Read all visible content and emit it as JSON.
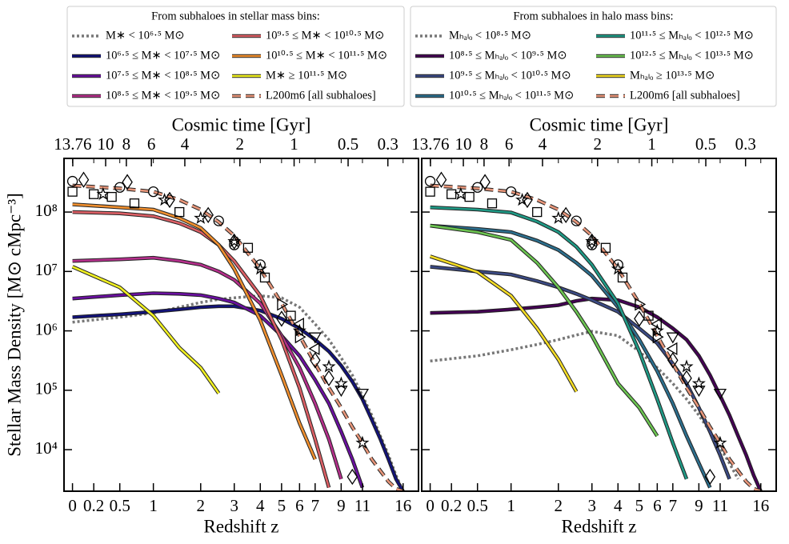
{
  "chart_data": [
    {
      "type": "line",
      "xscale": "log1p",
      "yscale": "log",
      "legend_title": "From subhaloes in stellar mass bins:",
      "xlabel": "Redshift z",
      "x2label": "Cosmic time [Gyr]",
      "ylabel": "Stellar Mass Density [M⊙ cMpc⁻³]",
      "xlim": [
        -0.07,
        18.4
      ],
      "xticks": [
        0,
        0.2,
        0.5,
        1,
        2,
        3,
        4,
        5,
        6,
        7,
        9,
        11,
        16
      ],
      "x2ticks": [
        13.76,
        10,
        8,
        6,
        4,
        2,
        1,
        0.5,
        0.3
      ],
      "ylim": [
        2000,
        800000000.0
      ],
      "yticks": [
        {
          "value": 10000.0,
          "label": "10⁴"
        },
        {
          "value": 100000.0,
          "label": "10⁵"
        },
        {
          "value": 1000000.0,
          "label": "10⁶"
        },
        {
          "value": 10000000.0,
          "label": "10⁷"
        },
        {
          "value": 100000000.0,
          "label": "10⁸"
        }
      ],
      "ytick_labels": true,
      "x": [
        0,
        0.5,
        1,
        1.5,
        2,
        2.5,
        3,
        4,
        5,
        6,
        7,
        8,
        9,
        10,
        11,
        12,
        13,
        14,
        15,
        16
      ],
      "series": [
        {
          "name": "M∗ < 10⁶·⁵ M⊙",
          "color": "#777777",
          "style": "dotted",
          "values": [
            1400000.0,
            1700000.0,
            2000000.0,
            2500000.0,
            3000000.0,
            3400000.0,
            3600000.0,
            3900000.0,
            3600000.0,
            2500000.0,
            1300000.0,
            710000.0,
            350000.0,
            180000.0,
            81000.0,
            38000.0,
            17000.0,
            8100.0,
            3700.0,
            2000.0
          ]
        },
        {
          "name": "10⁶·⁵ ≤ M∗ < 10⁷·⁵ M⊙",
          "color": "#12127a",
          "style": "solid",
          "values": [
            1700000.0,
            1900000.0,
            2100000.0,
            2300000.0,
            2500000.0,
            2600000.0,
            2600000.0,
            2200000.0,
            1600000.0,
            1100000.0,
            710000.0,
            450000.0,
            260000.0,
            140000.0,
            71000.0,
            32000.0,
            15000.0,
            6900.0,
            3200.0,
            2000.0
          ]
        },
        {
          "name": "10⁷·⁵ ≤ M∗ < 10⁸·⁵ M⊙",
          "color": "#6a0fa0",
          "style": "solid",
          "values": [
            3500000.0,
            4000000.0,
            4300000.0,
            4200000.0,
            4000000.0,
            3500000.0,
            3000000.0,
            1800000.0,
            830000.0,
            380000.0,
            150000.0,
            60000.0,
            20000.0,
            6900.0,
            2300.0,
            null,
            null,
            null,
            null,
            null
          ]
        },
        {
          "name": "10⁸·⁵ ≤ M∗ < 10⁹·⁵ M⊙",
          "color": "#b52f8c",
          "style": "solid",
          "values": [
            15000000.0,
            16000000.0,
            17000000.0,
            15000000.0,
            13000000.0,
            10000000.0,
            7200000.0,
            2900000.0,
            830000.0,
            240000.0,
            60000.0,
            15000.0,
            3200.0,
            null,
            null,
            null,
            null,
            null,
            null,
            null
          ]
        },
        {
          "name": "10⁹·⁵ ≤ M∗ < 10¹⁰·⁵ M⊙",
          "color": "#dc5f65",
          "style": "solid",
          "values": [
            100000000.0,
            95000000.0,
            85000000.0,
            65000000.0,
            46000000.0,
            28000000.0,
            15000000.0,
            3900000.0,
            710000.0,
            110000.0,
            15000.0,
            2300.0,
            null,
            null,
            null,
            null,
            null,
            null,
            null,
            null
          ]
        },
        {
          "name": "10¹⁰·⁵ ≤ M∗ < 10¹¹·⁵ M⊙",
          "color": "#f08f2e",
          "style": "solid",
          "values": [
            135000000.0,
            120000000.0,
            110000000.0,
            79000000.0,
            54000000.0,
            28000000.0,
            11000000.0,
            1500000.0,
            180000.0,
            28000.0,
            6900.0,
            null,
            null,
            null,
            null,
            null,
            null,
            null,
            null,
            null
          ]
        },
        {
          "name": "M∗ ≥ 10¹¹·⁵ M⊙",
          "color": "#f0f021",
          "style": "solid",
          "values": [
            12000000.0,
            5400000.0,
            1800000.0,
            520000.0,
            240000.0,
            89000.0,
            null,
            null,
            null,
            null,
            null,
            null,
            null,
            null,
            null,
            null,
            null,
            null,
            null,
            null
          ]
        },
        {
          "name": "L200m6 [all subhaloes]",
          "color": "#e8967a",
          "style": "dashed",
          "values": [
            280000000.0,
            250000000.0,
            220000000.0,
            160000000.0,
            110000000.0,
            68000000.0,
            40000000.0,
            11000000.0,
            2900000.0,
            830000.0,
            280000.0,
            110000.0,
            51000.0,
            24000.0,
            13000.0,
            6900.0,
            4400.0,
            2900.0,
            2200.0,
            2000.0
          ]
        }
      ]
    },
    {
      "type": "line",
      "xscale": "log1p",
      "yscale": "log",
      "legend_title": "From subhaloes in halo mass bins:",
      "xlabel": "Redshift z",
      "x2label": "Cosmic time [Gyr]",
      "xlim": [
        -0.07,
        18.4
      ],
      "xticks": [
        0,
        0.2,
        0.5,
        1,
        2,
        3,
        4,
        5,
        6,
        7,
        9,
        11,
        16
      ],
      "x2ticks": [
        13.76,
        10,
        8,
        6,
        4,
        2,
        1,
        0.5,
        0.3
      ],
      "ylim": [
        2000,
        800000000.0
      ],
      "yticks": [
        {
          "value": 10000.0,
          "label": "10⁴"
        },
        {
          "value": 100000.0,
          "label": "10⁵"
        },
        {
          "value": 1000000.0,
          "label": "10⁶"
        },
        {
          "value": 10000000.0,
          "label": "10⁷"
        },
        {
          "value": 100000000.0,
          "label": "10⁸"
        }
      ],
      "ytick_labels": false,
      "x": [
        0,
        0.5,
        1,
        1.5,
        2,
        2.5,
        3,
        4,
        5,
        6,
        7,
        8,
        9,
        10,
        11,
        12,
        13,
        14,
        15,
        16
      ],
      "series": [
        {
          "name": "Mₕₐₗₒ < 10⁸·⁵ M⊙",
          "color": "#777777",
          "style": "dotted",
          "values": [
            310000.0,
            380000.0,
            480000.0,
            590000.0,
            710000.0,
            850000.0,
            980000.0,
            830000.0,
            450000.0,
            240000.0,
            130000.0,
            71000.0,
            38000.0,
            20000.0,
            11000.0,
            5900.0,
            3200.0,
            null,
            null,
            null
          ]
        },
        {
          "name": "10⁸·⁵ ≤ Mₕₐₗₒ < 10⁹·⁵ M⊙",
          "color": "#440154",
          "style": "solid",
          "values": [
            2000000.0,
            2100000.0,
            2300000.0,
            2500000.0,
            2700000.0,
            3200000.0,
            3500000.0,
            3300000.0,
            2500000.0,
            1700000.0,
            1100000.0,
            710000.0,
            380000.0,
            180000.0,
            81000.0,
            38000.0,
            17000.0,
            8100.0,
            3700.0,
            2000.0
          ]
        },
        {
          "name": "10⁹·⁵ ≤ Mₕₐₗₒ < 10¹⁰·⁵ M⊙",
          "color": "#3b4a84",
          "style": "solid",
          "values": [
            12000000.0,
            10000000.0,
            8900000.0,
            6900000.0,
            5400000.0,
            4200000.0,
            3300000.0,
            2100000.0,
            1100000.0,
            620000.0,
            280000.0,
            130000.0,
            51000.0,
            20000.0,
            8100.0,
            3200.0,
            null,
            null,
            null,
            null
          ]
        },
        {
          "name": "10¹⁰·⁵ ≤ Mₕₐₗₒ < 10¹¹·⁵ M⊙",
          "color": "#2c6f8e",
          "style": "solid",
          "values": [
            59000000.0,
            52000000.0,
            46000000.0,
            33000000.0,
            23000000.0,
            14000000.0,
            8500000.0,
            2500000.0,
            710000.0,
            210000.0,
            60000.0,
            17000.0,
            5900.0,
            2300.0,
            null,
            null,
            null,
            null,
            null,
            null
          ]
        },
        {
          "name": "10¹¹·⁵ ≤ Mₕₐₗₒ < 10¹²·⁵ M⊙",
          "color": "#1f9a86",
          "style": "solid",
          "values": [
            120000000.0,
            110000000.0,
            98000000.0,
            69000000.0,
            46000000.0,
            26000000.0,
            13000000.0,
            2900000.0,
            450000.0,
            71000.0,
            13000.0,
            3200.0,
            null,
            null,
            null,
            null,
            null,
            null,
            null,
            null
          ]
        },
        {
          "name": "10¹²·⁵ ≤ Mₕₐₗₒ < 10¹³·⁵ M⊙",
          "color": "#6cc551",
          "style": "solid",
          "values": [
            59000000.0,
            46000000.0,
            34000000.0,
            14000000.0,
            5400000.0,
            2100000.0,
            830000.0,
            130000.0,
            51000.0,
            17000.0,
            null,
            null,
            null,
            null,
            null,
            null,
            null,
            null,
            null,
            null
          ]
        },
        {
          "name": "Mₕₐₗₒ ≥ 10¹³·⁵ M⊙",
          "color": "#f4dc24",
          "style": "solid",
          "values": [
            18000000.0,
            9800000.0,
            3900000.0,
            1100000.0,
            330000.0,
            95000.0,
            null,
            null,
            null,
            null,
            null,
            null,
            null,
            null,
            null,
            null,
            null,
            null,
            null,
            null
          ]
        },
        {
          "name": "L200m6 [all subhaloes]",
          "color": "#e8967a",
          "style": "dashed",
          "values": [
            280000000.0,
            250000000.0,
            220000000.0,
            160000000.0,
            110000000.0,
            68000000.0,
            40000000.0,
            11000000.0,
            2900000.0,
            830000.0,
            280000.0,
            110000.0,
            51000.0,
            24000.0,
            13000.0,
            6900.0,
            4400.0,
            2900.0,
            2200.0,
            2000.0
          ]
        }
      ]
    }
  ],
  "observations": [
    {
      "marker": "circle",
      "x": [
        0,
        0.5,
        1,
        2.5,
        3,
        4
      ],
      "values": [
        330000000.0,
        260000000.0,
        220000000.0,
        71000000.0,
        28000000.0,
        13000000.0
      ]
    },
    {
      "marker": "square",
      "x": [
        0,
        0.2,
        0.4,
        0.7,
        1.5,
        3.5,
        4.2,
        5.5
      ],
      "values": [
        220000000.0,
        200000000.0,
        180000000.0,
        140000000.0,
        100000000.0,
        25000000.0,
        7900000.0,
        1800000.0
      ]
    },
    {
      "marker": "diamond",
      "x": [
        0.1,
        0.6,
        1.3,
        2.2,
        3,
        5,
        7,
        8,
        10
      ],
      "values": [
        350000000.0,
        320000000.0,
        160000000.0,
        89000000.0,
        32000000.0,
        1600000.0,
        320000.0,
        160000.0,
        3500.0
      ]
    },
    {
      "marker": "triangle-right",
      "x": [
        5,
        6
      ],
      "values": [
        2800000.0,
        790000.0
      ]
    },
    {
      "marker": "triangle-left",
      "x": [
        6,
        7
      ],
      "values": [
        1300000.0,
        500000.0
      ]
    },
    {
      "marker": "triangle-down",
      "x": [
        7,
        9,
        11
      ],
      "values": [
        790000.0,
        100000.0,
        89000.0
      ]
    },
    {
      "marker": "star",
      "x": [
        0.3,
        1.2,
        2,
        3,
        4,
        6,
        8,
        9,
        11
      ],
      "values": [
        200000000.0,
        160000000.0,
        79000000.0,
        32000000.0,
        11000000.0,
        1000000.0,
        250000.0,
        130000.0,
        13000.0
      ]
    }
  ]
}
